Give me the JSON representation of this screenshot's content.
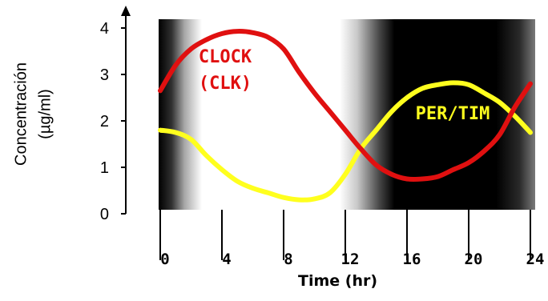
{
  "chart_data": {
    "type": "line",
    "title": "",
    "ylabel_lines": [
      "Concentración",
      "(µg/ml)"
    ],
    "xlabel": "Time (hr)",
    "xlim": [
      0,
      24
    ],
    "ylim": [
      0,
      4.2
    ],
    "x_ticks": [
      "0",
      "4",
      "8",
      "12",
      "16",
      "20",
      "24"
    ],
    "x_tick_values": [
      0,
      4,
      8,
      12,
      16,
      20,
      24
    ],
    "y_ticks": [
      "0",
      "1",
      "2",
      "3",
      "4"
    ],
    "y_tick_values": [
      0,
      1,
      2,
      3,
      4
    ],
    "background": "light/dark cycle: dark early hours 0-3, light 3-12.5, dark 12.5-24",
    "series": [
      {
        "name": "CLOCK (CLK)",
        "label_lines": [
          "CLOCK",
          "(CLK)"
        ],
        "color": "#e01010",
        "x": [
          0,
          1,
          2,
          3,
          4,
          5,
          6,
          7,
          8,
          9,
          10,
          11,
          12,
          13,
          14,
          15,
          16,
          17,
          18,
          19,
          20,
          21,
          22,
          23,
          24
        ],
        "y": [
          2.65,
          3.2,
          3.55,
          3.75,
          3.88,
          3.93,
          3.9,
          3.8,
          3.55,
          3.05,
          2.6,
          2.2,
          1.8,
          1.4,
          1.05,
          0.85,
          0.75,
          0.75,
          0.8,
          0.95,
          1.1,
          1.35,
          1.7,
          2.3,
          2.8
        ]
      },
      {
        "name": "PER/TIM",
        "label_lines": [
          "PER/TIM"
        ],
        "color": "#ffff1e",
        "x": [
          0,
          1,
          2,
          3,
          4,
          5,
          6,
          7,
          8,
          9,
          10,
          11,
          12,
          13,
          14,
          15,
          16,
          17,
          18,
          19,
          20,
          21,
          22,
          23,
          24
        ],
        "y": [
          1.8,
          1.75,
          1.6,
          1.25,
          0.95,
          0.7,
          0.55,
          0.45,
          0.35,
          0.3,
          0.32,
          0.45,
          0.85,
          1.4,
          1.8,
          2.2,
          2.5,
          2.7,
          2.78,
          2.82,
          2.78,
          2.6,
          2.4,
          2.1,
          1.75
        ]
      }
    ]
  }
}
